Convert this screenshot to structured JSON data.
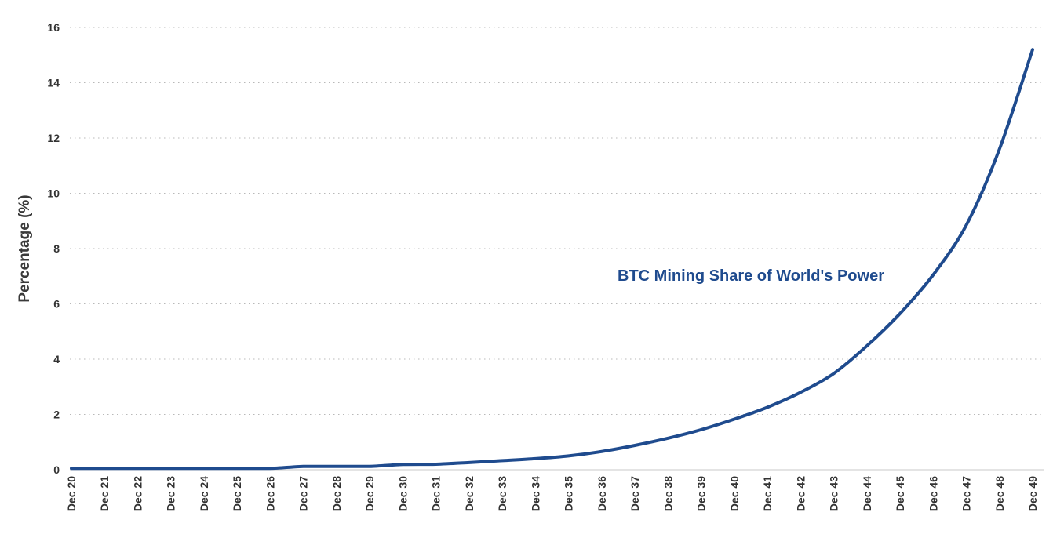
{
  "chart_data": {
    "type": "line",
    "title": "",
    "xlabel": "",
    "ylabel": "Percentage (%)",
    "ylim": [
      0,
      16
    ],
    "yticks": [
      0,
      2,
      4,
      6,
      8,
      10,
      12,
      14,
      16
    ],
    "grid": true,
    "categories": [
      "Dec 20",
      "Dec 21",
      "Dec 22",
      "Dec 23",
      "Dec 24",
      "Dec 25",
      "Dec 26",
      "Dec 27",
      "Dec 28",
      "Dec 29",
      "Dec 30",
      "Dec 31",
      "Dec 32",
      "Dec 33",
      "Dec 34",
      "Dec 35",
      "Dec 36",
      "Dec 37",
      "Dec 38",
      "Dec 39",
      "Dec 40",
      "Dec 41",
      "Dec 42",
      "Dec 43",
      "Dec 44",
      "Dec 45",
      "Dec 46",
      "Dec 47",
      "Dec 48",
      "Dec 49"
    ],
    "series": [
      {
        "name": "BTC Mining Share of World's Power",
        "color": "#1f4b8e",
        "values": [
          0.05,
          0.05,
          0.05,
          0.05,
          0.05,
          0.05,
          0.05,
          0.12,
          0.12,
          0.12,
          0.19,
          0.2,
          0.26,
          0.33,
          0.4,
          0.5,
          0.66,
          0.88,
          1.14,
          1.45,
          1.83,
          2.26,
          2.8,
          3.48,
          4.48,
          5.65,
          7.05,
          8.85,
          11.6,
          15.2
        ]
      }
    ],
    "annotations": [
      {
        "text": "BTC Mining Share of World's Power",
        "near": "Dec 43"
      }
    ]
  }
}
